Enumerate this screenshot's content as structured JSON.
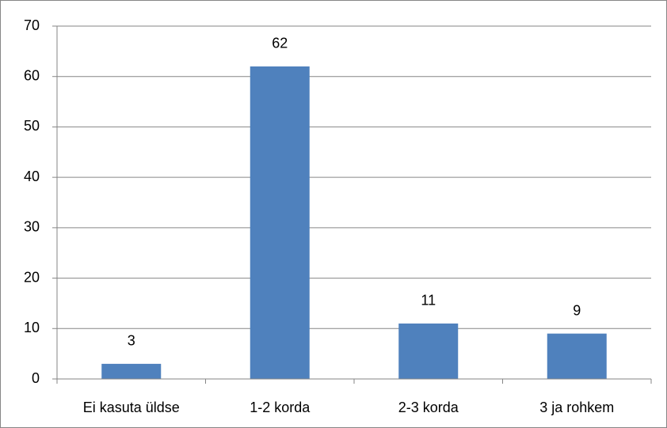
{
  "chart_data": {
    "type": "bar",
    "categories": [
      "Ei kasuta üldse",
      "1-2 korda",
      "2-3 korda",
      "3 ja rohkem"
    ],
    "values": [
      3,
      62,
      11,
      9
    ],
    "color": "#4f81bd",
    "ylim": [
      0,
      70
    ],
    "yticks": [
      0,
      10,
      20,
      30,
      40,
      50,
      60,
      70
    ],
    "grid": true,
    "data_labels": true
  }
}
